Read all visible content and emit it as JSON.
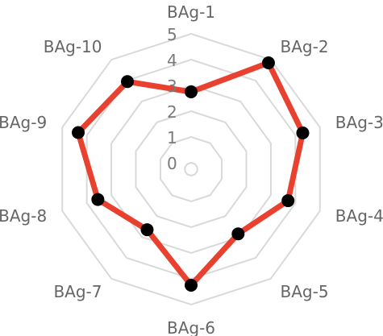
{
  "chart_data": {
    "type": "radar",
    "categories": [
      "BAg-1",
      "BAg-2",
      "BAg-3",
      "BAg-4",
      "BAg-5",
      "BAg-6",
      "BAg-7",
      "BAg-8",
      "BAg-9",
      "BAg-10"
    ],
    "series": [
      {
        "values": [
          2.75,
          4.85,
          4.3,
          3.7,
          2.85,
          4.25,
          2.65,
          3.55,
          4.35,
          3.95
        ]
      }
    ],
    "rlim": [
      0,
      5
    ],
    "rticks": [
      "0",
      "1",
      "2",
      "3",
      "4",
      "5"
    ],
    "grid": true,
    "legend": "none",
    "colors": {
      "series_line": "#e8412f",
      "series_marker": "#000000",
      "grid": "#d9d9d9",
      "axis_label": "#666666",
      "tick_label": "#7a7a7a"
    }
  }
}
